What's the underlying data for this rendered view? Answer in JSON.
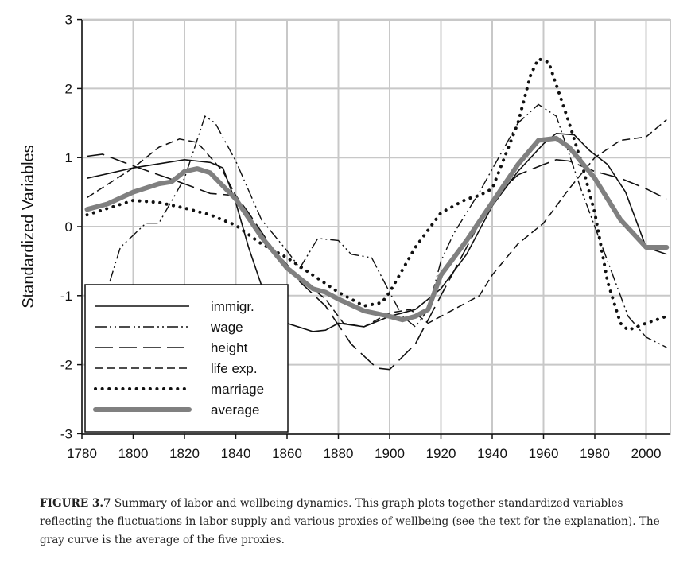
{
  "chart_data": {
    "type": "line",
    "title": "",
    "xlabel": "",
    "ylabel": "Standardized Variables",
    "xlim": [
      1780,
      2010
    ],
    "ylim": [
      -3,
      3
    ],
    "xticks": [
      1780,
      1800,
      1820,
      1840,
      1860,
      1880,
      1900,
      1920,
      1940,
      1960,
      1980,
      2000
    ],
    "yticks": [
      3,
      2,
      1,
      0,
      -1,
      -2,
      -3
    ],
    "grid": true,
    "legend_position": "bottom-left",
    "series": [
      {
        "name": "immigr.",
        "style": "solid",
        "x": [
          1782,
          1800,
          1820,
          1830,
          1835,
          1840,
          1845,
          1850,
          1855,
          1860,
          1870,
          1875,
          1880,
          1890,
          1900,
          1910,
          1920,
          1930,
          1940,
          1950,
          1960,
          1965,
          1972,
          1978,
          1985,
          1992,
          2000,
          2008
        ],
        "y": [
          0.7,
          0.85,
          0.97,
          0.93,
          0.85,
          0.35,
          -0.3,
          -0.85,
          -1.2,
          -1.4,
          -1.52,
          -1.5,
          -1.4,
          -1.45,
          -1.3,
          -1.2,
          -0.9,
          -0.4,
          0.3,
          0.8,
          1.2,
          1.35,
          1.33,
          1.1,
          0.9,
          0.5,
          -0.3,
          -0.4
        ]
      },
      {
        "name": "wage",
        "style": "dash-dot-dot",
        "x": [
          1782,
          1790,
          1795,
          1805,
          1810,
          1820,
          1828,
          1832,
          1840,
          1850,
          1860,
          1865,
          1872,
          1880,
          1885,
          1893,
          1900,
          1905,
          1910,
          1915,
          1920,
          1925,
          1935,
          1950,
          1958,
          1965,
          1975,
          1985,
          1993,
          2000,
          2008
        ],
        "y": [
          -1.4,
          -0.9,
          -0.3,
          0.05,
          0.05,
          0.7,
          1.6,
          1.5,
          0.95,
          0.1,
          -0.35,
          -0.6,
          -0.17,
          -0.2,
          -0.4,
          -0.45,
          -0.95,
          -1.3,
          -1.45,
          -1.2,
          -0.5,
          -0.1,
          0.5,
          1.5,
          1.77,
          1.6,
          0.5,
          -0.5,
          -1.3,
          -1.6,
          -1.75
        ]
      },
      {
        "name": "height",
        "style": "long-dash",
        "x": [
          1782,
          1788,
          1800,
          1820,
          1830,
          1840,
          1845,
          1855,
          1865,
          1875,
          1885,
          1895,
          1900,
          1910,
          1920,
          1930,
          1940,
          1950,
          1960,
          1965,
          1970,
          1980,
          1990,
          2000,
          2008
        ],
        "y": [
          1.02,
          1.05,
          0.88,
          0.62,
          0.48,
          0.45,
          0.2,
          -0.35,
          -0.8,
          -1.15,
          -1.7,
          -2.05,
          -2.07,
          -1.7,
          -1.0,
          -0.3,
          0.4,
          0.75,
          0.9,
          0.97,
          0.95,
          0.8,
          0.7,
          0.55,
          0.4
        ]
      },
      {
        "name": "life exp.",
        "style": "dash",
        "x": [
          1782,
          1800,
          1810,
          1818,
          1825,
          1835,
          1845,
          1855,
          1865,
          1875,
          1882,
          1890,
          1900,
          1908,
          1915,
          1920,
          1935,
          1940,
          1950,
          1960,
          1970,
          1980,
          1990,
          2000,
          2008
        ],
        "y": [
          0.42,
          0.85,
          1.15,
          1.27,
          1.22,
          0.8,
          0.1,
          -0.35,
          -0.75,
          -1.05,
          -1.4,
          -1.45,
          -1.25,
          -1.2,
          -1.4,
          -1.3,
          -1.0,
          -0.7,
          -0.25,
          0.05,
          0.55,
          1.0,
          1.25,
          1.3,
          1.55
        ]
      },
      {
        "name": "marriage",
        "style": "dotted",
        "x": [
          1782,
          1800,
          1810,
          1820,
          1830,
          1840,
          1850,
          1860,
          1870,
          1880,
          1890,
          1897,
          1900,
          1910,
          1920,
          1930,
          1935,
          1940,
          1950,
          1955,
          1958,
          1962,
          1970,
          1975,
          1980,
          1985,
          1990,
          1993,
          2000,
          2008
        ],
        "y": [
          0.17,
          0.38,
          0.35,
          0.27,
          0.17,
          0.02,
          -0.25,
          -0.45,
          -0.7,
          -0.95,
          -1.15,
          -1.1,
          -0.95,
          -0.3,
          0.2,
          0.4,
          0.45,
          0.55,
          1.5,
          2.2,
          2.43,
          2.38,
          1.5,
          0.9,
          0.2,
          -0.8,
          -1.4,
          -1.5,
          -1.4,
          -1.3
        ]
      },
      {
        "name": "average",
        "style": "thick-gray",
        "x": [
          1782,
          1790,
          1800,
          1810,
          1815,
          1820,
          1825,
          1830,
          1840,
          1850,
          1860,
          1870,
          1875,
          1880,
          1890,
          1900,
          1905,
          1910,
          1915,
          1920,
          1930,
          1940,
          1950,
          1958,
          1965,
          1970,
          1980,
          1990,
          2000,
          2008
        ],
        "y": [
          0.25,
          0.33,
          0.5,
          0.62,
          0.65,
          0.8,
          0.84,
          0.78,
          0.4,
          -0.15,
          -0.6,
          -0.9,
          -0.95,
          -1.05,
          -1.22,
          -1.3,
          -1.35,
          -1.3,
          -1.2,
          -0.7,
          -0.2,
          0.35,
          0.9,
          1.25,
          1.28,
          1.15,
          0.7,
          0.1,
          -0.3,
          -0.3
        ]
      }
    ]
  },
  "caption": {
    "label": "FIGURE 3.7",
    "text": " Summary of labor and wellbeing dynamics. This graph plots together standardized variables reflecting the fluctuations in labor supply and various proxies of wellbeing (see the text for the explanation). The gray curve is the average of the five proxies."
  }
}
